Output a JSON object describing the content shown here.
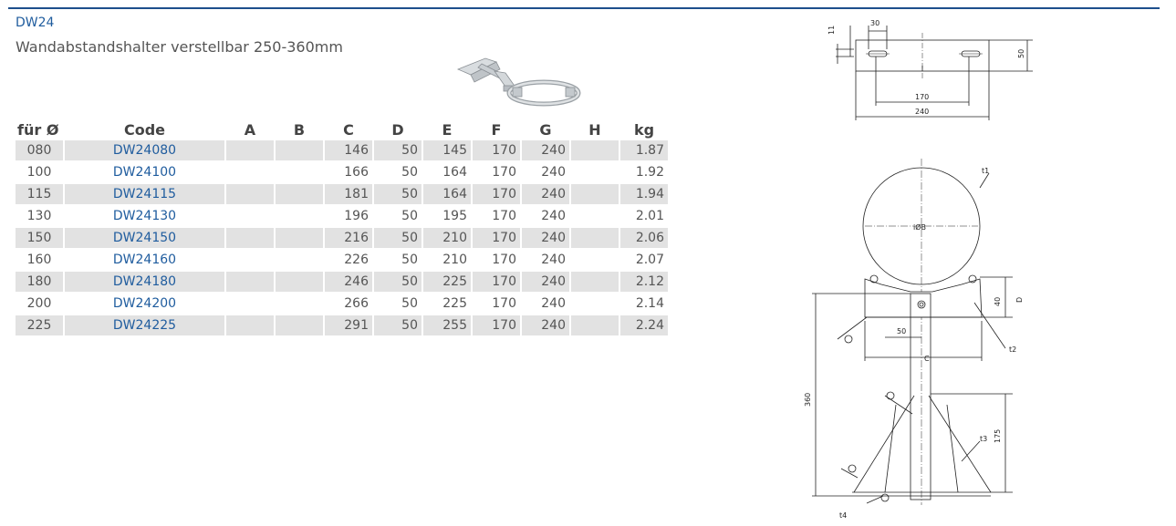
{
  "header": {
    "code": "DW24",
    "subtitle": "Wandabstandshalter verstellbar 250-360mm"
  },
  "table": {
    "headers": [
      "für Ø",
      "Code",
      "A",
      "B",
      "C",
      "D",
      "E",
      "F",
      "G",
      "H",
      "kg"
    ],
    "rows": [
      [
        "080",
        "DW24080",
        "",
        "",
        "146",
        "50",
        "145",
        "170",
        "240",
        "",
        "1.87"
      ],
      [
        "100",
        "DW24100",
        "",
        "",
        "166",
        "50",
        "164",
        "170",
        "240",
        "",
        "1.92"
      ],
      [
        "115",
        "DW24115",
        "",
        "",
        "181",
        "50",
        "164",
        "170",
        "240",
        "",
        "1.94"
      ],
      [
        "130",
        "DW24130",
        "",
        "",
        "196",
        "50",
        "195",
        "170",
        "240",
        "",
        "2.01"
      ],
      [
        "150",
        "DW24150",
        "",
        "",
        "216",
        "50",
        "210",
        "170",
        "240",
        "",
        "2.06"
      ],
      [
        "160",
        "DW24160",
        "",
        "",
        "226",
        "50",
        "210",
        "170",
        "240",
        "",
        "2.07"
      ],
      [
        "180",
        "DW24180",
        "",
        "",
        "246",
        "50",
        "225",
        "170",
        "240",
        "",
        "2.12"
      ],
      [
        "200",
        "DW24200",
        "",
        "",
        "266",
        "50",
        "225",
        "170",
        "240",
        "",
        "2.14"
      ],
      [
        "225",
        "DW24225",
        "",
        "",
        "291",
        "50",
        "255",
        "170",
        "240",
        "",
        "2.24"
      ]
    ]
  },
  "drawing": {
    "top_view_labels": {
      "d30": "30",
      "d11": "11",
      "d50": "50",
      "d170": "170",
      "d240": "240"
    },
    "front_view_labels": {
      "t1": "t1",
      "iOB": "iØB",
      "d40": "40",
      "D": "D",
      "d50": "50",
      "t2": "t2",
      "C": "C",
      "d360": "360",
      "d175": "175",
      "t3": "t3",
      "t4": "t4"
    }
  },
  "colors": {
    "accent": "#1f5c9e",
    "rule": "#1d4f8c",
    "row_shade": "#e2e2e2"
  }
}
